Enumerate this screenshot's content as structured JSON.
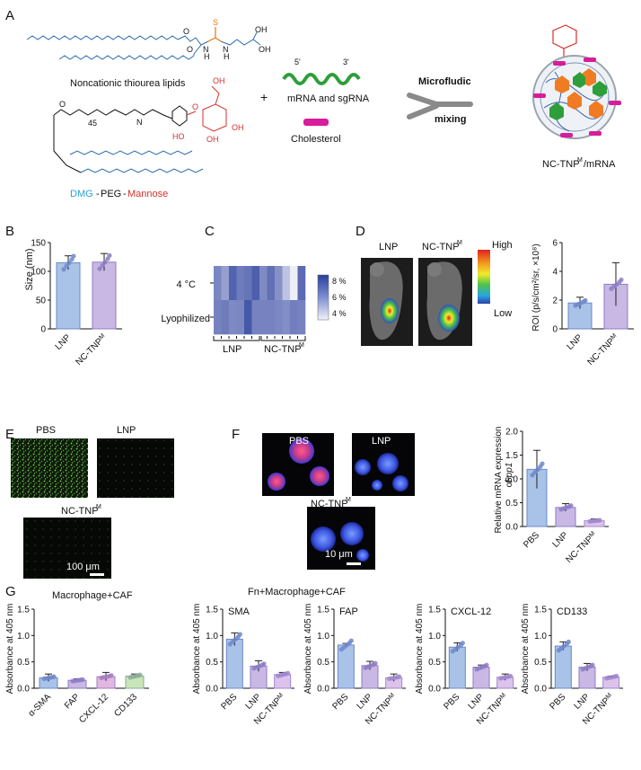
{
  "panels": {
    "A": {
      "label": "A",
      "lipid_name": "Noncationic thiourea lipids",
      "rna_5": "5'",
      "rna_3": "3'",
      "rna_label": "mRNA and sgRNA",
      "plus": "+",
      "cholesterol": "Cholesterol",
      "peg_index": "45",
      "chem_atoms": {
        "S": "S",
        "N": "N",
        "H": "H",
        "O": "O",
        "OH": "OH",
        "HO": "HO"
      },
      "microfluidic_1": "Microfludic",
      "microfluidic_2": "mixing",
      "dmg": "DMG",
      "sep1": "-",
      "peg": "PEG",
      "sep2": "-",
      "mannose": "Mannose",
      "nc_tnp_mrna": "NC-TNP",
      "nc_tnp_sup": "M",
      "nc_tnp_suffix": "/mRNA"
    },
    "B": {
      "label": "B",
      "ylabel": "Size (nm)",
      "yticks": [
        "0",
        "50",
        "100",
        "150"
      ],
      "xlabels": [
        "LNP",
        "NC-TNP"
      ],
      "sup": "M"
    },
    "C": {
      "label": "C",
      "rows": [
        "4 °C",
        "Lyophilized"
      ],
      "groups": [
        "LNP",
        "NC-TNP"
      ],
      "sup": "M",
      "scale": [
        "8 %",
        "6 %",
        "4 %"
      ]
    },
    "D": {
      "label": "D",
      "img_labels": [
        "LNP",
        "NC-TNP"
      ],
      "sup": "M",
      "legend_high": "High",
      "legend_low": "Low",
      "ylabel": "ROI (p/s/cm²/sr, ×10⁸)",
      "yticks": [
        "0",
        "2",
        "4",
        "6"
      ],
      "xlabels": [
        "LNP",
        "NC-TNP"
      ]
    },
    "E": {
      "label": "E",
      "img_labels": [
        "PBS",
        "LNP",
        "NC-TNP"
      ],
      "sup": "M",
      "scalebar": "100 μm"
    },
    "F": {
      "label": "F",
      "img_labels": [
        "PBS",
        "LNP",
        "NC-TNP"
      ],
      "sup": "M",
      "scalebar": "10 μm",
      "ylabel_1": "Relative mRNA expression",
      "ylabel_2": "of",
      "ylabel_gene": "Spp1",
      "yticks": [
        "0.0",
        "0.5",
        "1.0",
        "1.5",
        "2.0"
      ],
      "xlabels": [
        "PBS",
        "LNP",
        "NC-TNP"
      ]
    },
    "G": {
      "label": "G",
      "title_left": "Macrophage+CAF",
      "title_right": "Fn+Macrophage+CAF",
      "ylabel": "Absorbance at 405 nm",
      "yticks": [
        "0.0",
        "0.5",
        "1.0",
        "1.5"
      ],
      "left_xlabels": [
        "α-SMA",
        "FAP",
        "CXCL-12",
        "CD133"
      ],
      "sub_titles": [
        "SMA",
        "FAP",
        "CXCL-12",
        "CD133"
      ],
      "sub_xlabels": [
        "PBS",
        "LNP",
        "NC-TNP"
      ],
      "sup": "M"
    }
  },
  "chart_data": [
    {
      "type": "bar",
      "panel": "B",
      "categories": [
        "LNP",
        "NC-TNPᴹ"
      ],
      "values": [
        115,
        116
      ],
      "errors": [
        12,
        15
      ],
      "ylabel": "Size (nm)",
      "ylim": [
        0,
        150
      ],
      "colors": [
        "#a9c3e8",
        "#c9b8e4"
      ]
    },
    {
      "type": "heatmap",
      "panel": "C",
      "rows": [
        "4 °C",
        "Lyophilized"
      ],
      "columns": 12,
      "values": [
        [
          6.5,
          5.8,
          7.5,
          6.8,
          7.0,
          7.6,
          6.4,
          7.1,
          6.2,
          4.8,
          3.6,
          7.3
        ],
        [
          6.6,
          6.8,
          6.4,
          6.5,
          7.8,
          6.6,
          6.6,
          6.6,
          6.5,
          6.3,
          6.7,
          6.6
        ]
      ],
      "groups": [
        "LNP",
        "NC-TNPᴹ"
      ],
      "scale_min": 3.5,
      "scale_max": 8.5,
      "scale_ticks": [
        "8 %",
        "6 %",
        "4 %"
      ]
    },
    {
      "type": "bar",
      "panel": "D",
      "categories": [
        "LNP",
        "NC-TNPᴹ"
      ],
      "values": [
        1.8,
        3.1
      ],
      "errors": [
        0.4,
        1.5
      ],
      "ylabel": "ROI (p/s/cm²/sr, ×10⁸)",
      "ylim": [
        0,
        6
      ],
      "colors": [
        "#a9c3e8",
        "#c9b8e4"
      ]
    },
    {
      "type": "bar",
      "panel": "F",
      "categories": [
        "PBS",
        "LNP",
        "NC-TNPᴹ"
      ],
      "values": [
        1.2,
        0.4,
        0.12
      ],
      "errors": [
        0.4,
        0.08,
        0.04
      ],
      "ylabel": "Relative mRNA expression of Spp1",
      "ylim": [
        0,
        2
      ],
      "colors": [
        "#a9c3e8",
        "#c9b8e4",
        "#dcc3ec"
      ]
    },
    {
      "type": "bar",
      "panel": "G-left",
      "title": "Macrophage+CAF",
      "categories": [
        "α-SMA",
        "FAP",
        "CXCL-12",
        "CD133"
      ],
      "values": [
        0.2,
        0.15,
        0.22,
        0.23
      ],
      "errors": [
        0.07,
        0.03,
        0.08,
        0.04
      ],
      "ylabel": "Absorbance at 405 nm",
      "ylim": [
        0,
        1.5
      ],
      "colors": [
        "#a9c3e8",
        "#c9b8e4",
        "#e0b8e0",
        "#c9e6b8"
      ]
    },
    {
      "type": "bar",
      "panel": "G-SMA",
      "title": "SMA",
      "categories": [
        "PBS",
        "LNP",
        "NC-TNPᴹ"
      ],
      "values": [
        0.93,
        0.42,
        0.26
      ],
      "errors": [
        0.12,
        0.1,
        0.04
      ],
      "ylabel": "Absorbance at 405 nm",
      "ylim": [
        0,
        1.5
      ],
      "colors": [
        "#a9c3e8",
        "#c9b8e4",
        "#dcc3ec"
      ]
    },
    {
      "type": "bar",
      "panel": "G-FAP",
      "title": "FAP",
      "categories": [
        "PBS",
        "LNP",
        "NC-TNPᴹ"
      ],
      "values": [
        0.82,
        0.43,
        0.2
      ],
      "errors": [
        0.03,
        0.08,
        0.07
      ],
      "ylabel": "Absorbance at 405 nm",
      "ylim": [
        0,
        1.5
      ],
      "colors": [
        "#a9c3e8",
        "#c9b8e4",
        "#dcc3ec"
      ]
    },
    {
      "type": "bar",
      "panel": "G-CXCL-12",
      "title": "CXCL-12",
      "categories": [
        "PBS",
        "LNP",
        "NC-TNPᴹ"
      ],
      "values": [
        0.78,
        0.4,
        0.21
      ],
      "errors": [
        0.08,
        0.04,
        0.06
      ],
      "ylabel": "Absorbance at 405 nm",
      "ylim": [
        0,
        1.5
      ],
      "colors": [
        "#a9c3e8",
        "#c9b8e4",
        "#dcc3ec"
      ]
    },
    {
      "type": "bar",
      "panel": "G-CD133",
      "title": "CD133",
      "categories": [
        "PBS",
        "LNP",
        "NC-TNPᴹ"
      ],
      "values": [
        0.8,
        0.4,
        0.21
      ],
      "errors": [
        0.08,
        0.07,
        0.02
      ],
      "ylabel": "Absorbance at 405 nm",
      "ylim": [
        0,
        1.5
      ],
      "colors": [
        "#a9c3e8",
        "#c9b8e4",
        "#dcc3ec"
      ]
    }
  ]
}
